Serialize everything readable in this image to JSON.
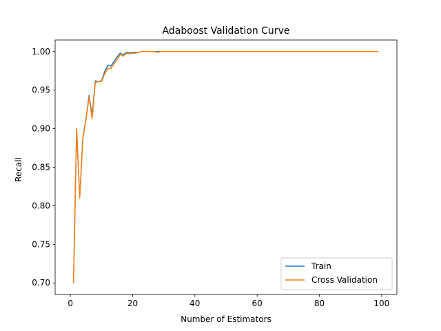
{
  "chart_data": {
    "type": "line",
    "title": "Adaboost Validation Curve",
    "xlabel": "Number of Estimators",
    "ylabel": "Recall",
    "xlim": [
      -4.9,
      104.9
    ],
    "ylim": [
      0.685,
      1.015
    ],
    "xticks": [
      {
        "value": 0,
        "label": "0"
      },
      {
        "value": 20,
        "label": "20"
      },
      {
        "value": 40,
        "label": "40"
      },
      {
        "value": 60,
        "label": "60"
      },
      {
        "value": 80,
        "label": "80"
      },
      {
        "value": 100,
        "label": "100"
      }
    ],
    "yticks": [
      {
        "value": 0.7,
        "label": "0.70"
      },
      {
        "value": 0.75,
        "label": "0.75"
      },
      {
        "value": 0.8,
        "label": "0.80"
      },
      {
        "value": 0.85,
        "label": "0.85"
      },
      {
        "value": 0.9,
        "label": "0.90"
      },
      {
        "value": 0.95,
        "label": "0.95"
      },
      {
        "value": 1.0,
        "label": "1.00"
      }
    ],
    "grid": false,
    "legend": {
      "position": "lower-right"
    },
    "series": [
      {
        "name": "Train",
        "color": "#1f77b4",
        "x": [
          1,
          2,
          3,
          4,
          5,
          6,
          7,
          8,
          9,
          10,
          11,
          12,
          13,
          14,
          15,
          16,
          17,
          18,
          19,
          20,
          21,
          22,
          23,
          24,
          25,
          26,
          27,
          28,
          29,
          30,
          35,
          40,
          50,
          60,
          70,
          80,
          90,
          99
        ],
        "y": [
          0.7,
          0.9,
          0.811,
          0.888,
          0.912,
          0.943,
          0.917,
          0.962,
          0.961,
          0.962,
          0.974,
          0.982,
          0.981,
          0.987,
          0.993,
          0.998,
          0.996,
          0.999,
          0.998,
          0.999,
          0.999,
          0.999,
          1.0,
          1.0,
          1.0,
          1.0,
          1.0,
          1.0,
          1.0,
          1.0,
          1.0,
          1.0,
          1.0,
          1.0,
          1.0,
          1.0,
          1.0,
          1.0
        ]
      },
      {
        "name": "Cross Validation",
        "color": "#ff7f0e",
        "x": [
          1,
          2,
          3,
          4,
          5,
          6,
          7,
          8,
          9,
          10,
          11,
          12,
          13,
          14,
          15,
          16,
          17,
          18,
          19,
          20,
          21,
          22,
          23,
          24,
          25,
          26,
          27,
          28,
          29,
          30,
          35,
          40,
          50,
          60,
          70,
          80,
          90,
          99
        ],
        "y": [
          0.7,
          0.9,
          0.81,
          0.887,
          0.911,
          0.941,
          0.913,
          0.96,
          0.961,
          0.961,
          0.971,
          0.978,
          0.978,
          0.984,
          0.99,
          0.996,
          0.994,
          0.998,
          0.997,
          0.998,
          0.998,
          0.999,
          1.0,
          1.0,
          1.0,
          1.0,
          1.0,
          0.999,
          1.0,
          1.0,
          1.0,
          1.0,
          1.0,
          1.0,
          1.0,
          1.0,
          1.0,
          1.0
        ]
      }
    ]
  }
}
